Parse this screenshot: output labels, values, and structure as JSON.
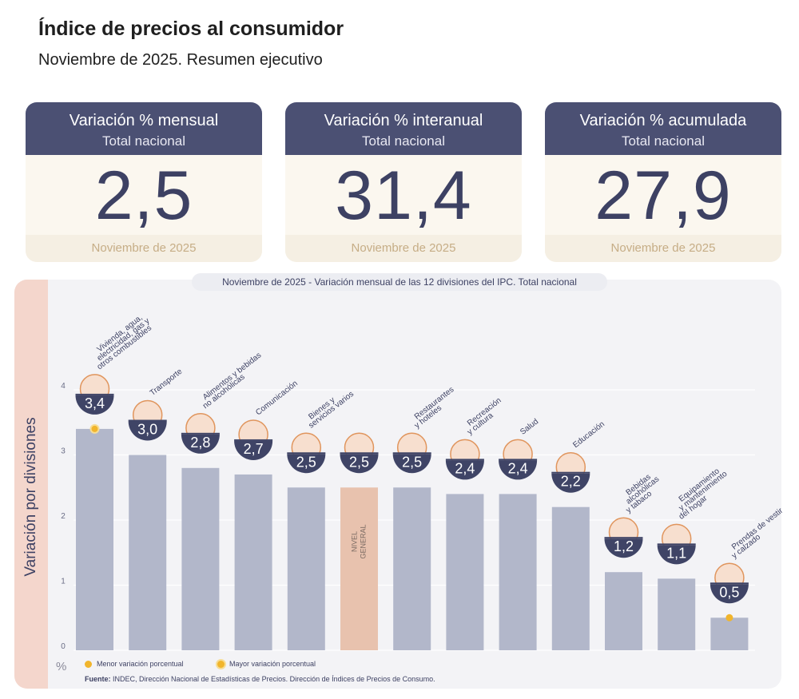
{
  "header": {
    "title": "Índice de precios al consumidor",
    "subtitle": "Noviembre de 2025. Resumen ejecutivo"
  },
  "cards": [
    {
      "title": "Variación % mensual",
      "sub": "Total nacional",
      "value": "2,5",
      "footer": "Noviembre de 2025"
    },
    {
      "title": "Variación % interanual",
      "sub": "Total nacional",
      "value": "31,4",
      "footer": "Noviembre de 2025"
    },
    {
      "title": "Variación % acumulada",
      "sub": "Total nacional",
      "value": "27,9",
      "footer": "Noviembre de 2025"
    }
  ],
  "panel": {
    "ylabel_side": "Variación por divisiones",
    "unit": "%",
    "legend_min": "Menor variación porcentual",
    "legend_max": "Mayor variación porcentual",
    "source_bold": "Fuente:",
    "source_text": " INDEC, Dirección Nacional de Estadísticas de Precios. Dirección de Índices de Precios de Consumo."
  },
  "colors": {
    "bar": "#b2b7ca",
    "highlight_bar": "#e8c2ae",
    "badge": "#3f4466",
    "accent": "#e0955d",
    "marker": "#f1b52c",
    "grid": "#ffffff"
  },
  "chart_data": {
    "type": "bar",
    "title": "Noviembre de 2025 - Variación mensual de las 12 divisiones del IPC. Total nacional",
    "ylabel": "Variación por divisiones",
    "ylim": [
      0,
      4
    ],
    "yticks": [
      0,
      1,
      2,
      3,
      4
    ],
    "grid": true,
    "categories": [
      "Vivienda, agua, electricidad, gas y otros combustibles",
      "Transporte",
      "Alimentos y bebidas no alcohólicas",
      "Comunicación",
      "Bienes y servicios varios",
      "Nivel general",
      "Restaurantes y hoteles",
      "Recreación y cultura",
      "Salud",
      "Educación",
      "Bebidas alcohólicas y tabaco",
      "Equipamiento y mantenimiento del hogar",
      "Prendas de vestir y calzado"
    ],
    "category_label_lines": [
      [
        "Vivienda, agua,",
        "electricidad, gas y",
        "otros combustibles"
      ],
      [
        "Transporte"
      ],
      [
        "Alimentos y bebidas",
        "no alcohólicas"
      ],
      [
        "Comunicación"
      ],
      [
        "Bienes y",
        "servicios varios"
      ],
      [
        "NIVEL",
        "GENERAL"
      ],
      [
        "Restaurantes",
        "y hoteles"
      ],
      [
        "Recreación",
        "y cultura"
      ],
      [
        "Salud"
      ],
      [
        "Educación"
      ],
      [
        "Bebidas",
        "alcohólicas",
        "y tabaco"
      ],
      [
        "Equipamiento",
        "y mantenimiento",
        "del hogar"
      ],
      [
        "Prendas de vestir",
        "y calzado"
      ]
    ],
    "values": [
      3.4,
      3.0,
      2.8,
      2.7,
      2.5,
      2.5,
      2.5,
      2.4,
      2.4,
      2.2,
      1.2,
      1.1,
      0.5
    ],
    "value_labels": [
      "3,4",
      "3,0",
      "2,8",
      "2,7",
      "2,5",
      "2,5",
      "2,5",
      "2,4",
      "2,4",
      "2,2",
      "1,2",
      "1,1",
      "0,5"
    ],
    "highlight_index": 5,
    "max_index": 0,
    "min_index": 12,
    "icons": [
      "house-utilities-icon",
      "transport-icon",
      "food-icon",
      "phone-icon",
      "comb-scissors-icon",
      "basket-icon",
      "cutlery-icon",
      "recreation-icon",
      "health-cross-icon",
      "book-icon",
      "wine-icon",
      "air-conditioner-icon",
      "tshirt-icon"
    ]
  }
}
